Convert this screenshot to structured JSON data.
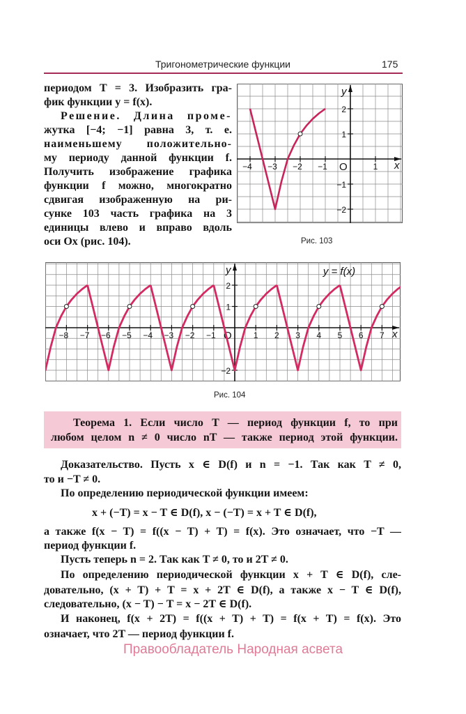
{
  "header": {
    "title": "Тригонометрические функции",
    "page_number": "175",
    "rule_color": "#a52a55"
  },
  "left_column": [
    "периодом T = 3. Изобразить гра-",
    "фик функции y = f(x).",
    "Решение. Длина проме-",
    "жутка [−4; −1] равна 3, т. е.",
    "наименьшему положительно-",
    "му периоду данной функции f.",
    "Получить изображение графика",
    "функции f можно, многократно",
    "сдвигая изображенную на ри-",
    "сунке 103 часть графика на 3",
    "единицы влево и вправо вдоль",
    "оси Ox (рис. 104)."
  ],
  "figures": {
    "fig103_caption": "Рис. 103",
    "fig104_caption": "Рис. 104"
  },
  "theorem": {
    "lines": [
      "Теорема 1. Если число T — период функции f, то при",
      "любом целом n ≠ 0 число nT — также период этой функции."
    ],
    "background": "#f6c9d6"
  },
  "proof": [
    "Доказательство. Пусть x ∈ D(f) и n = −1. Так как T ≠ 0,",
    "то и −T ≠ 0.",
    "По определению периодической функции имеем:",
    "x + (−T) = x − T ∈ D(f), x − (−T) = x + T ∈ D(f),",
    "а также f(x − T) = f((x − T) + T) = f(x). Это означает, что −T —",
    "период функции f.",
    "Пусть теперь n = 2. Так как T ≠ 0, то и 2T ≠ 0.",
    "По определению периодической функции x + T ∈ D(f), сле-",
    "довательно, (x + T) + T = x + 2T ∈ D(f), а также x − T ∈ D(f),",
    "следовательно, (x − T) − T = x − 2T ∈ D(f).",
    "И наконец, f(x + 2T) = f((x + T) + T) = f(x + T) = f(x). Это",
    "означает, что 2T — период функции f."
  ],
  "footer": {
    "text": "Правообладатель Народная асвета",
    "color": "#e07a96"
  },
  "chart_data": [
    {
      "type": "line",
      "figure": "Рис. 103",
      "xlabel": "x",
      "ylabel": "y",
      "origin_label": "O",
      "xlim": [
        -4.5,
        2.1
      ],
      "ylim": [
        -2.5,
        3.0
      ],
      "grid": true,
      "x_ticks": [
        {
          "v": -4,
          "label": "−4"
        },
        {
          "v": -3,
          "label": "−3"
        },
        {
          "v": -2,
          "label": "−2"
        },
        {
          "v": -1,
          "label": "−1"
        },
        {
          "v": 1,
          "label": "1"
        }
      ],
      "y_ticks": [
        {
          "v": 2,
          "label": "2"
        },
        {
          "v": 1,
          "label": "1"
        },
        {
          "v": -1,
          "label": "−1"
        },
        {
          "v": -2,
          "label": "−2"
        }
      ],
      "line_color": "#c8245a",
      "series": [
        {
          "points": [
            [
              -4,
              2
            ],
            [
              -3,
              -2
            ],
            [
              -2.75,
              -0.9
            ],
            [
              -2.5,
              0
            ],
            [
              -2.25,
              0.55
            ],
            [
              -2,
              1
            ],
            [
              -1.75,
              1.33
            ],
            [
              -1.5,
              1.6
            ],
            [
              -1.25,
              1.82
            ],
            [
              -1,
              2
            ]
          ]
        }
      ],
      "open_points": [
        [
          -2,
          1
        ]
      ]
    },
    {
      "type": "line",
      "figure": "Рис. 104",
      "title": "y = f(x)",
      "xlabel": "x",
      "ylabel": "y",
      "origin_label": "O",
      "xlim": [
        -9.0,
        7.9
      ],
      "ylim": [
        -2.5,
        3.1
      ],
      "grid": true,
      "period": 3,
      "x_ticks": [
        {
          "v": -8,
          "label": "−8"
        },
        {
          "v": -7,
          "label": "−7"
        },
        {
          "v": -6,
          "label": "−6"
        },
        {
          "v": -5,
          "label": "−5"
        },
        {
          "v": -4,
          "label": "−4"
        },
        {
          "v": -3,
          "label": "−3"
        },
        {
          "v": -2,
          "label": "−2"
        },
        {
          "v": -1,
          "label": "−1"
        },
        {
          "v": 1,
          "label": "1"
        },
        {
          "v": 2,
          "label": "2"
        },
        {
          "v": 3,
          "label": "3"
        },
        {
          "v": 4,
          "label": "4"
        },
        {
          "v": 5,
          "label": "5"
        },
        {
          "v": 6,
          "label": "6"
        },
        {
          "v": 7,
          "label": "7"
        }
      ],
      "y_ticks": [
        {
          "v": 2,
          "label": "2"
        },
        {
          "v": 1,
          "label": "1"
        },
        {
          "v": -2,
          "label": "−2"
        }
      ],
      "line_color": "#d42a62",
      "period_points": [
        [
          -4,
          2
        ],
        [
          -3,
          -2
        ],
        [
          -2.75,
          -0.9
        ],
        [
          -2.5,
          0
        ],
        [
          -2.25,
          0.55
        ],
        [
          -2,
          1
        ],
        [
          -1.75,
          1.33
        ],
        [
          -1.5,
          1.6
        ],
        [
          -1.25,
          1.82
        ],
        [
          -1,
          2
        ]
      ],
      "open_points": [
        [
          -8,
          1
        ],
        [
          -5,
          1
        ],
        [
          -2,
          1
        ],
        [
          1,
          1
        ],
        [
          4,
          1
        ],
        [
          7,
          1
        ]
      ]
    }
  ]
}
